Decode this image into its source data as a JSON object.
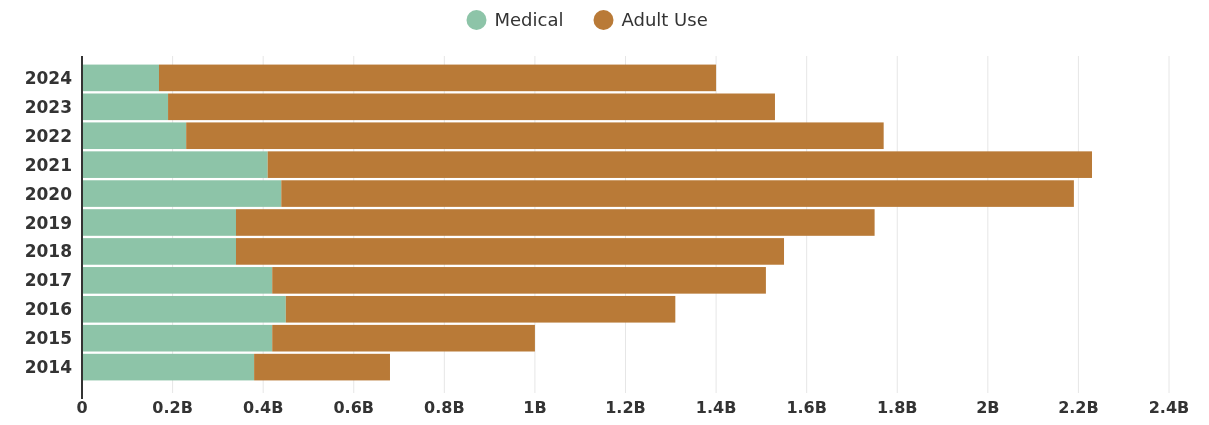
{
  "chart_data": {
    "type": "bar",
    "orientation": "horizontal",
    "stacked": true,
    "categories": [
      "2024",
      "2023",
      "2022",
      "2021",
      "2020",
      "2019",
      "2018",
      "2017",
      "2016",
      "2015",
      "2014"
    ],
    "series": [
      {
        "name": "Medical",
        "color": "#8dc4a8",
        "values": [
          0.17,
          0.19,
          0.23,
          0.41,
          0.44,
          0.34,
          0.34,
          0.42,
          0.45,
          0.42,
          0.38
        ]
      },
      {
        "name": "Adult Use",
        "color": "#b97a37",
        "values": [
          1.23,
          1.34,
          1.54,
          1.82,
          1.75,
          1.41,
          1.21,
          1.09,
          0.86,
          0.58,
          0.3
        ]
      }
    ],
    "xlim": [
      0,
      2.4
    ],
    "xticks": [
      0,
      {
        "value": 0.2,
        "label": "0.2B"
      },
      {
        "value": 0.4,
        "label": "0.4B"
      },
      {
        "value": 0.6,
        "label": "0.6B"
      },
      {
        "value": 0.8,
        "label": "0.8B"
      },
      {
        "value": 1,
        "label": "1B"
      },
      {
        "value": 1.2,
        "label": "1.2B"
      },
      {
        "value": 1.4,
        "label": "1.4B"
      },
      {
        "value": 1.6,
        "label": "1.6B"
      },
      {
        "value": 1.8,
        "label": "1.8B"
      },
      {
        "value": 2,
        "label": "2B"
      },
      {
        "value": 2.2,
        "label": "2.2B"
      },
      {
        "value": 2.4,
        "label": "2.4B"
      }
    ],
    "grid": "x",
    "legend": "top"
  }
}
